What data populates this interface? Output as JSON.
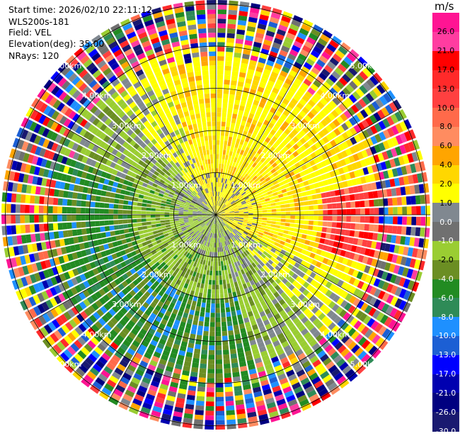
{
  "info": {
    "start_time": "Start time: 2026/02/10 22:11:12",
    "instrument": "WLS200s-181",
    "field": "Field: VEL",
    "elevation": "Elevation(deg): 35.00",
    "nrays": "NRays: 120"
  },
  "chart_data": {
    "type": "heatmap",
    "projection": "polar",
    "units": "m/s",
    "range_rings": [
      "1.00km",
      "2.00km",
      "3.00km",
      "4.00km",
      "5.00km"
    ],
    "colorbar": {
      "labels": [
        "26.0",
        "21.0",
        "17.0",
        "13.0",
        "10.0",
        "8.0",
        "6.0",
        "4.0",
        "2.0",
        "1.0",
        "0.0",
        "-1.0",
        "-2.0",
        "-4.0",
        "-6.0",
        "-8.0",
        "-10.0",
        "-13.0",
        "-17.0",
        "-21.0",
        "-26.0",
        "-30.0"
      ],
      "colors": [
        "#ff1493",
        "#ff3ca0",
        "#ff0000",
        "#ff2a2a",
        "#ff4040",
        "#ff6a4a",
        "#ff8c60",
        "#ffa500",
        "#ffd700",
        "#ffff00",
        "#808890",
        "#707070",
        "#9acd32",
        "#6b8e23",
        "#228b22",
        "#2e8b57",
        "#1e90ff",
        "#1c5fd4",
        "#0000ff",
        "#0000b0",
        "#000080",
        "#191970"
      ]
    }
  }
}
